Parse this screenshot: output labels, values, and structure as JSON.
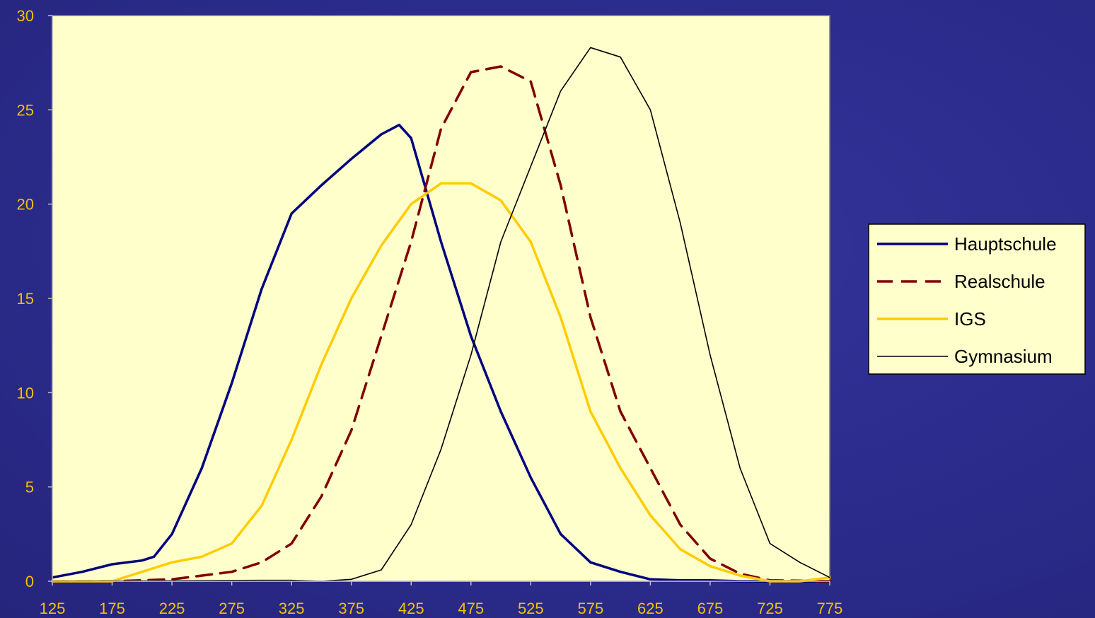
{
  "chart_data": {
    "type": "line",
    "title": "",
    "xlabel": "",
    "ylabel": "",
    "xlim": [
      125,
      775
    ],
    "ylim": [
      0,
      30
    ],
    "x_ticks": [
      "125",
      "175",
      "225",
      "275",
      "325",
      "375",
      "425",
      "475",
      "525",
      "575",
      "625",
      "675",
      "725",
      "775"
    ],
    "y_ticks": [
      "0",
      "5",
      "10",
      "15",
      "20",
      "25",
      "30"
    ],
    "grid": false,
    "legend_position": "right",
    "plot_background": "#ffffcc",
    "axis_text_color": "#f5c000",
    "series": [
      {
        "name": "Hauptschule",
        "color": "#000080",
        "dash": "solid",
        "width": "thick",
        "points": [
          [
            125,
            0.2
          ],
          [
            150,
            0.5
          ],
          [
            175,
            0.9
          ],
          [
            200,
            1.1
          ],
          [
            210,
            1.3
          ],
          [
            225,
            2.5
          ],
          [
            250,
            6.0
          ],
          [
            275,
            10.5
          ],
          [
            300,
            15.5
          ],
          [
            325,
            19.5
          ],
          [
            350,
            21.0
          ],
          [
            375,
            22.4
          ],
          [
            400,
            23.7
          ],
          [
            415,
            24.2
          ],
          [
            425,
            23.5
          ],
          [
            450,
            18.0
          ],
          [
            475,
            13.0
          ],
          [
            500,
            9.0
          ],
          [
            525,
            5.5
          ],
          [
            550,
            2.5
          ],
          [
            575,
            1.0
          ],
          [
            600,
            0.5
          ],
          [
            625,
            0.1
          ],
          [
            650,
            0.05
          ],
          [
            675,
            0.05
          ],
          [
            700,
            0
          ],
          [
            775,
            0
          ]
        ]
      },
      {
        "name": "Realschule",
        "color": "#800000",
        "dash": "dashed",
        "width": "thick",
        "points": [
          [
            125,
            0
          ],
          [
            175,
            0
          ],
          [
            225,
            0.1
          ],
          [
            275,
            0.5
          ],
          [
            300,
            1.0
          ],
          [
            325,
            2.0
          ],
          [
            350,
            4.5
          ],
          [
            375,
            8.0
          ],
          [
            400,
            13.0
          ],
          [
            425,
            18.0
          ],
          [
            450,
            24.0
          ],
          [
            475,
            27.0
          ],
          [
            500,
            27.3
          ],
          [
            525,
            26.5
          ],
          [
            550,
            21.0
          ],
          [
            575,
            14.0
          ],
          [
            600,
            9.0
          ],
          [
            625,
            6.0
          ],
          [
            650,
            3.0
          ],
          [
            675,
            1.2
          ],
          [
            700,
            0.4
          ],
          [
            725,
            0.05
          ],
          [
            775,
            0
          ]
        ]
      },
      {
        "name": "IGS",
        "color": "#ffcc00",
        "dash": "solid",
        "width": "thick",
        "points": [
          [
            125,
            0
          ],
          [
            175,
            0
          ],
          [
            200,
            0.5
          ],
          [
            225,
            1.0
          ],
          [
            250,
            1.3
          ],
          [
            275,
            2.0
          ],
          [
            300,
            4.0
          ],
          [
            325,
            7.5
          ],
          [
            350,
            11.5
          ],
          [
            375,
            15.0
          ],
          [
            400,
            17.8
          ],
          [
            425,
            20.0
          ],
          [
            450,
            21.1
          ],
          [
            475,
            21.1
          ],
          [
            500,
            20.2
          ],
          [
            525,
            18.0
          ],
          [
            550,
            14.0
          ],
          [
            575,
            9.0
          ],
          [
            600,
            6.0
          ],
          [
            625,
            3.5
          ],
          [
            650,
            1.7
          ],
          [
            675,
            0.8
          ],
          [
            700,
            0.3
          ],
          [
            725,
            0
          ],
          [
            750,
            0
          ],
          [
            775,
            0.2
          ]
        ]
      },
      {
        "name": "Gymnasium",
        "color": "#000000",
        "dash": "solid",
        "width": "thin",
        "points": [
          [
            125,
            0
          ],
          [
            300,
            0.05
          ],
          [
            325,
            0.05
          ],
          [
            350,
            0
          ],
          [
            375,
            0.1
          ],
          [
            400,
            0.6
          ],
          [
            425,
            3.0
          ],
          [
            450,
            7.0
          ],
          [
            475,
            12.0
          ],
          [
            500,
            18.0
          ],
          [
            525,
            22.0
          ],
          [
            550,
            26.0
          ],
          [
            575,
            28.3
          ],
          [
            600,
            27.8
          ],
          [
            625,
            25.0
          ],
          [
            650,
            19.0
          ],
          [
            675,
            12.0
          ],
          [
            700,
            6.0
          ],
          [
            725,
            2.0
          ],
          [
            750,
            1.0
          ],
          [
            775,
            0.2
          ]
        ]
      }
    ]
  }
}
